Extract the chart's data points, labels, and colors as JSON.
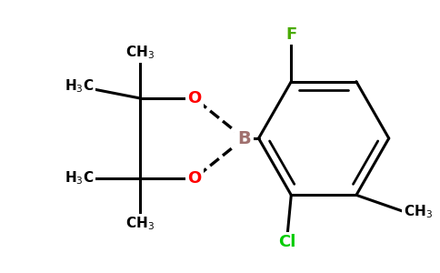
{
  "background": "#ffffff",
  "bond_color": "#000000",
  "bond_width": 2.2,
  "fig_width": 4.84,
  "fig_height": 3.0,
  "dpi": 100,
  "label_colors": {
    "B": "#a0706e",
    "O": "#ff0000",
    "F": "#4aab00",
    "Cl": "#00cc00",
    "C": "#000000"
  },
  "font_size_atom": 13,
  "font_size_ch3": 11,
  "font_size_sub": 8
}
